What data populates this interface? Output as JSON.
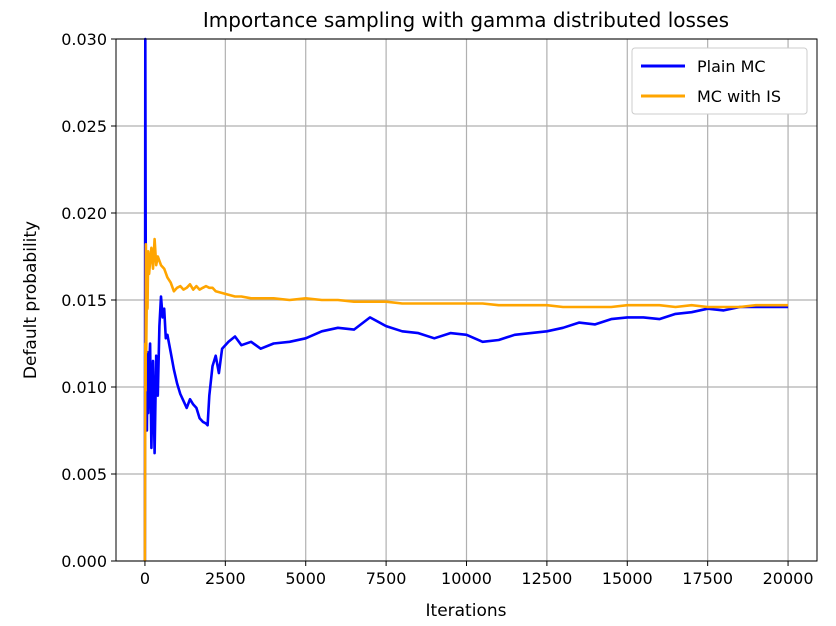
{
  "chart_data": {
    "type": "line",
    "title": "Importance sampling with gamma distributed losses",
    "xlabel": "Iterations",
    "ylabel": "Default probability",
    "xlim": [
      -900,
      20900
    ],
    "ylim": [
      0,
      0.03
    ],
    "x_ticks": [
      0,
      2500,
      5000,
      7500,
      10000,
      12500,
      15000,
      17500,
      20000
    ],
    "x_tick_labels": [
      "0",
      "2500",
      "5000",
      "7500",
      "10000",
      "12500",
      "15000",
      "17500",
      "20000"
    ],
    "y_ticks": [
      0,
      0.005,
      0.01,
      0.015,
      0.02,
      0.025,
      0.03
    ],
    "y_tick_labels": [
      "0.000",
      "0.005",
      "0.010",
      "0.015",
      "0.020",
      "0.025",
      "0.030"
    ],
    "grid": true,
    "legend_position": "top-right",
    "series": [
      {
        "name": "Plain MC",
        "color": "#0000ff",
        "x": [
          0,
          10,
          20,
          30,
          40,
          60,
          80,
          100,
          130,
          160,
          200,
          250,
          300,
          350,
          400,
          450,
          500,
          550,
          600,
          650,
          700,
          800,
          900,
          1000,
          1100,
          1200,
          1300,
          1400,
          1500,
          1600,
          1700,
          1800,
          1900,
          1950,
          2000,
          2100,
          2200,
          2300,
          2400,
          2600,
          2800,
          3000,
          3300,
          3600,
          4000,
          4500,
          5000,
          5500,
          6000,
          6500,
          7000,
          7500,
          8000,
          8500,
          9000,
          9500,
          10000,
          10500,
          11000,
          11500,
          12000,
          12500,
          13000,
          13500,
          14000,
          14500,
          15000,
          15500,
          16000,
          16500,
          17000,
          17500,
          18000,
          18500,
          19000,
          19500,
          20000
        ],
        "y": [
          0.0,
          0.03,
          0.021,
          0.014,
          0.009,
          0.0075,
          0.012,
          0.0085,
          0.011,
          0.0125,
          0.0065,
          0.0115,
          0.0062,
          0.0118,
          0.0095,
          0.0135,
          0.0152,
          0.014,
          0.0145,
          0.0128,
          0.013,
          0.012,
          0.011,
          0.0102,
          0.0096,
          0.0092,
          0.0088,
          0.0093,
          0.009,
          0.0088,
          0.0082,
          0.008,
          0.0079,
          0.0078,
          0.0095,
          0.0112,
          0.0118,
          0.0108,
          0.0122,
          0.0126,
          0.0129,
          0.0124,
          0.0126,
          0.0122,
          0.0125,
          0.0126,
          0.0128,
          0.0132,
          0.0134,
          0.0133,
          0.014,
          0.0135,
          0.0132,
          0.0131,
          0.0128,
          0.0131,
          0.013,
          0.0126,
          0.0127,
          0.013,
          0.0131,
          0.0132,
          0.0134,
          0.0137,
          0.0136,
          0.0139,
          0.014,
          0.014,
          0.0139,
          0.0142,
          0.0143,
          0.0145,
          0.0144,
          0.0146,
          0.0146,
          0.0146,
          0.0146
        ]
      },
      {
        "name": "MC with IS",
        "color": "#ffa500",
        "x": [
          0,
          10,
          20,
          30,
          40,
          60,
          80,
          100,
          130,
          160,
          200,
          250,
          300,
          350,
          400,
          500,
          600,
          700,
          800,
          900,
          1000,
          1100,
          1200,
          1300,
          1400,
          1500,
          1600,
          1700,
          1800,
          1900,
          2000,
          2100,
          2200,
          2400,
          2600,
          2800,
          3000,
          3300,
          3600,
          4000,
          4500,
          5000,
          5500,
          6000,
          6500,
          7000,
          7500,
          8000,
          8500,
          9000,
          9500,
          10000,
          10500,
          11000,
          11500,
          12000,
          12500,
          13000,
          13500,
          14000,
          14500,
          15000,
          15500,
          16000,
          16500,
          17000,
          17500,
          18000,
          18500,
          19000,
          19500,
          20000
        ],
        "y": [
          0.0,
          0.0125,
          0.0098,
          0.0182,
          0.012,
          0.016,
          0.0145,
          0.0178,
          0.0165,
          0.0172,
          0.018,
          0.0168,
          0.0185,
          0.017,
          0.0175,
          0.017,
          0.0168,
          0.0163,
          0.016,
          0.0155,
          0.0157,
          0.0158,
          0.0156,
          0.0157,
          0.0159,
          0.0156,
          0.0158,
          0.0156,
          0.0157,
          0.0158,
          0.0157,
          0.0157,
          0.0155,
          0.0154,
          0.0153,
          0.0152,
          0.0152,
          0.0151,
          0.0151,
          0.0151,
          0.015,
          0.0151,
          0.015,
          0.015,
          0.0149,
          0.0149,
          0.0149,
          0.0148,
          0.0148,
          0.0148,
          0.0148,
          0.0148,
          0.0148,
          0.0147,
          0.0147,
          0.0147,
          0.0147,
          0.0146,
          0.0146,
          0.0146,
          0.0146,
          0.0147,
          0.0147,
          0.0147,
          0.0146,
          0.0147,
          0.0146,
          0.0146,
          0.0146,
          0.0147,
          0.0147,
          0.0147
        ]
      }
    ]
  }
}
